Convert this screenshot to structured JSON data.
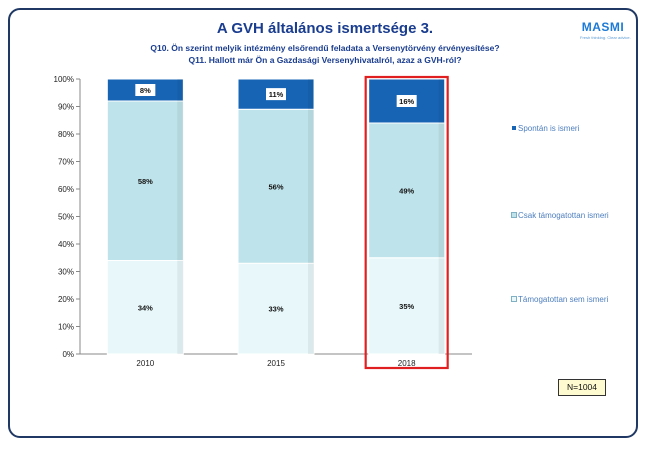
{
  "header": {
    "title": "A GVH általános ismertsége 3.",
    "subtitle_lines": [
      "Q10. Ön szerint melyik intézmény elsőrendű feladata a Versenytörvény érvényesítése?",
      "Q11. Hallott már Ön a Gazdasági Versenyhivatalról, azaz a GVH-ról?"
    ]
  },
  "logo": {
    "name": "MASMI",
    "tagline": "Fresh thinking. Clear advice."
  },
  "sample_note": "N=1004",
  "colors": {
    "frame": "#1f3864",
    "title": "#1a3d8f",
    "highlight": "#e02020",
    "segment_edge": "#a9c6d6"
  },
  "chart_data": {
    "type": "bar",
    "stacked": true,
    "categories": [
      "2010",
      "2015",
      "2018"
    ],
    "series": [
      {
        "name": "Támogatottan sem ismeri",
        "values": [
          34,
          33,
          35
        ],
        "color": "#e8f8fa"
      },
      {
        "name": "Csak támogatottan ismeri",
        "values": [
          58,
          56,
          49
        ],
        "color": "#bfe3ea"
      },
      {
        "name": "Spontán is ismeri",
        "values": [
          8,
          11,
          16
        ],
        "color": "#1764b5"
      }
    ],
    "data_labels": [
      [
        "34%",
        "33%",
        "35%"
      ],
      [
        "58%",
        "56%",
        "49%"
      ],
      [
        "8%",
        "11%",
        "16%"
      ]
    ],
    "y_ticks": [
      "0%",
      "10%",
      "20%",
      "30%",
      "40%",
      "50%",
      "60%",
      "70%",
      "80%",
      "90%",
      "100%"
    ],
    "ylim": [
      0,
      100
    ],
    "legend_placement": "right",
    "highlighted_category": "2018",
    "grid": false
  }
}
